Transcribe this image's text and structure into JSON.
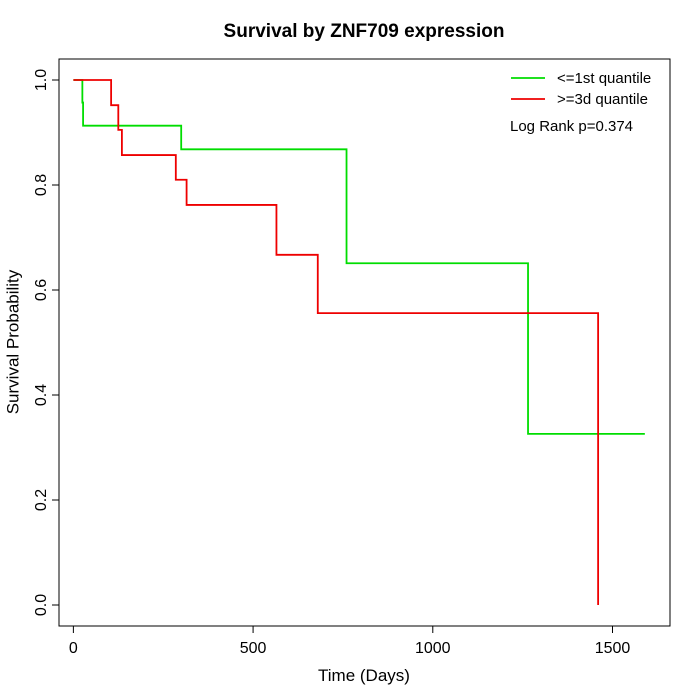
{
  "chart_data": {
    "type": "line",
    "title": "Survival by ZNF709 expression",
    "xlabel": "Time (Days)",
    "ylabel": "Survival Probability",
    "xlim": [
      -40,
      1660
    ],
    "ylim": [
      -0.04,
      1.04
    ],
    "xticks": [
      0,
      500,
      1000,
      1500
    ],
    "yticks": [
      0.0,
      0.2,
      0.4,
      0.6,
      0.8,
      1.0
    ],
    "xtick_labels": [
      "0",
      "500",
      "1000",
      "1500"
    ],
    "ytick_labels": [
      "0.0",
      "0.2",
      "0.4",
      "0.6",
      "0.8",
      "1.0"
    ],
    "grid": false,
    "legend_position": "top-right",
    "annotation": "Log Rank p=0.374",
    "series": [
      {
        "name": "<=1st quantile",
        "color": "#00dd00",
        "step": "post",
        "x": [
          0,
          25,
          27,
          300,
          760,
          1265,
          1590
        ],
        "y": [
          1.0,
          0.957,
          0.913,
          0.868,
          0.651,
          0.326,
          0.326
        ]
      },
      {
        "name": ">=3d quantile",
        "color": "#ee0000",
        "step": "post",
        "x": [
          0,
          105,
          125,
          135,
          285,
          315,
          565,
          680,
          1460,
          1460
        ],
        "y": [
          1.0,
          0.952,
          0.905,
          0.857,
          0.81,
          0.762,
          0.667,
          0.556,
          0.556,
          0.0
        ]
      }
    ]
  }
}
